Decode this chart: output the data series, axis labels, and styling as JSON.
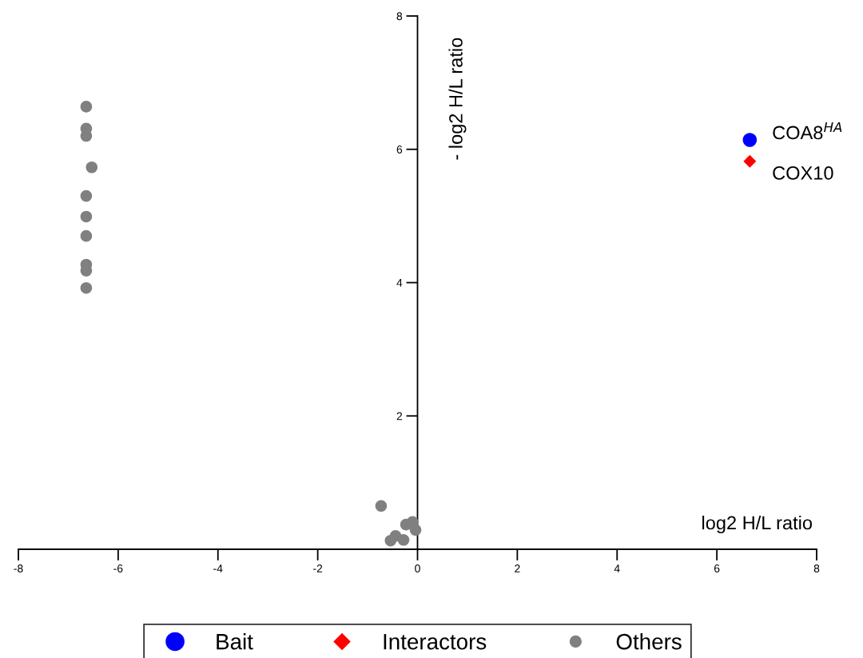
{
  "chart_data": {
    "type": "scatter",
    "xlabel": "log2 H/L ratio",
    "ylabel": "- log2 H/L ratio",
    "xlim": [
      -8,
      8
    ],
    "xticks": [
      -8,
      -6,
      -4,
      -2,
      0,
      2,
      4,
      6,
      8
    ],
    "ylim": [
      0,
      8
    ],
    "yticks": [
      {
        "value": 0,
        "label": null
      },
      2,
      4,
      6,
      8
    ],
    "grid": false,
    "legend": "bottom",
    "series": [
      {
        "name": "Bait",
        "color": "#0000ff",
        "marker": "circle",
        "x": [
          6.66
        ],
        "values": [
          6.14
        ]
      },
      {
        "name": "Interactors",
        "color": "#ff0000",
        "marker": "diamond",
        "x": [
          6.66
        ],
        "values": [
          5.82
        ]
      },
      {
        "name": "Others",
        "color": "#808080",
        "marker": "circle",
        "x": [
          -6.64,
          -6.64,
          -6.64,
          -6.53,
          -6.64,
          -6.64,
          -6.64,
          -6.64,
          -6.64,
          -6.64,
          -0.73,
          -0.1,
          -0.23,
          -0.04,
          -0.54,
          -0.44,
          -0.28
        ],
        "values": [
          6.64,
          6.31,
          6.2,
          5.73,
          5.3,
          4.99,
          4.7,
          4.27,
          4.18,
          3.92,
          0.65,
          0.41,
          0.37,
          0.29,
          0.13,
          0.2,
          0.14
        ]
      }
    ],
    "annotations": [
      {
        "text": "COA8$^{HA}$",
        "x": 6.66,
        "y": 6.14
      },
      {
        "text": "COX10",
        "x": 6.66,
        "y": 5.82
      }
    ]
  }
}
